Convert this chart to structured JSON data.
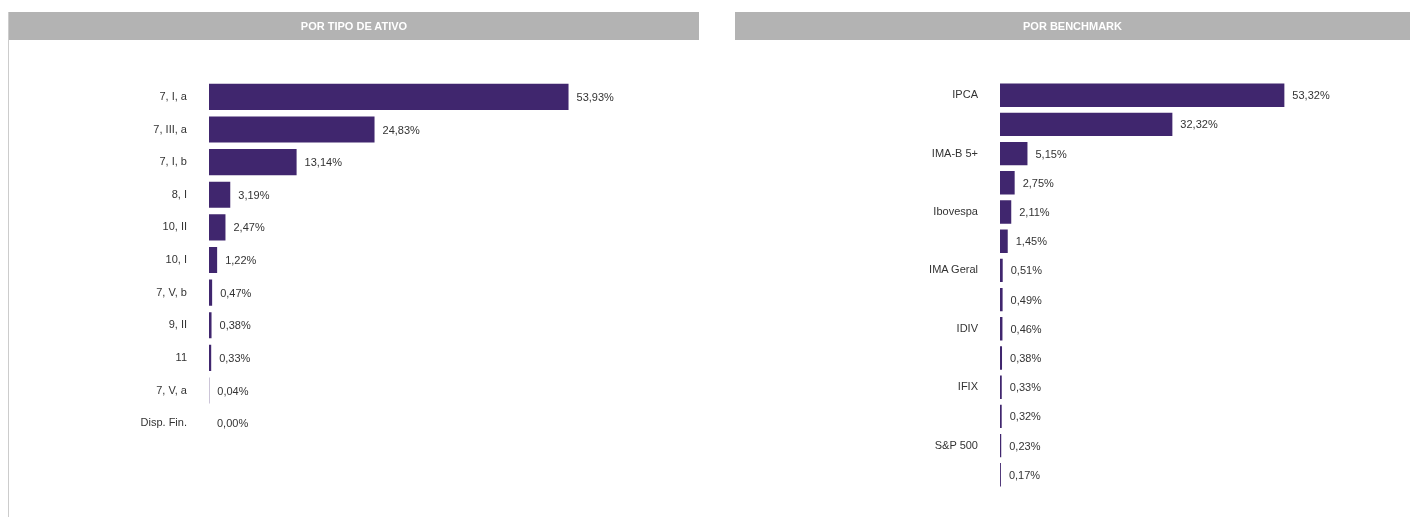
{
  "chart_data": [
    {
      "type": "bar",
      "title": "POR TIPO DE ATIVO",
      "orientation": "horizontal",
      "tick_labels": "y",
      "categories": [
        "7, I, a",
        "7, III, a",
        "7, I, b",
        "8, I",
        "10, II",
        "10, I",
        "7, V, b",
        "9, II",
        "11",
        "7, V, a",
        "Disp. Fin."
      ],
      "values": [
        53.93,
        24.83,
        13.14,
        3.19,
        2.47,
        1.22,
        0.47,
        0.38,
        0.33,
        0.04,
        0.0
      ],
      "value_labels": [
        "53,93%",
        "24,83%",
        "13,14%",
        "3,19%",
        "2,47%",
        "1,22%",
        "0,47%",
        "0,38%",
        "0,33%",
        "0,04%",
        "0,00%"
      ],
      "color": "#40266e"
    },
    {
      "type": "bar",
      "title": "POR BENCHMARK",
      "orientation": "horizontal",
      "tick_labels": "y",
      "categories": [
        "IPCA",
        null,
        "IMA-B 5+",
        null,
        "Ibovespa",
        null,
        "IMA Geral",
        null,
        "IDIV",
        null,
        "IFIX",
        null,
        "S&P 500",
        null
      ],
      "values": [
        53.32,
        32.32,
        5.15,
        2.75,
        2.11,
        1.45,
        0.51,
        0.49,
        0.46,
        0.38,
        0.33,
        0.32,
        0.23,
        0.17
      ],
      "value_labels": [
        "53,32%",
        "32,32%",
        "5,15%",
        "2,75%",
        "2,11%",
        "1,45%",
        "0,51%",
        "0,49%",
        "0,46%",
        "0,38%",
        "0,33%",
        "0,32%",
        "0,23%",
        "0,17%"
      ],
      "color": "#40266e"
    }
  ]
}
